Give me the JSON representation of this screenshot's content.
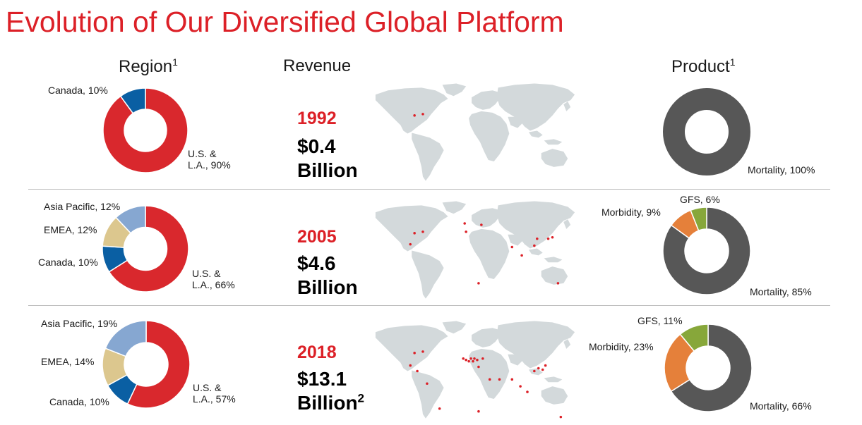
{
  "title": "Evolution of Our Diversified Global Platform",
  "columns": {
    "region": "Region",
    "region_sup": "1",
    "revenue": "Revenue",
    "product": "Product",
    "product_sup": "1"
  },
  "colors": {
    "title": "#dc2027",
    "us_la": "#d9282d",
    "canada": "#0a5fa3",
    "emea": "#dcc78e",
    "asia_pacific": "#86a7d1",
    "mortality": "#575757",
    "morbidity": "#e5803a",
    "gfs": "#87a73a",
    "map_land": "#d3d9db",
    "map_dot": "#dc2027"
  },
  "rows": [
    {
      "year": "1992",
      "revenue_line1": "$0.4",
      "revenue_line2": "Billion",
      "revenue_sup": "",
      "region_labels": {
        "canada": "Canada, 10%",
        "us_la_1": "U.S. &",
        "us_la_2": "L.A., 90%"
      },
      "product_labels": {
        "mortality": "Mortality, 100%"
      }
    },
    {
      "year": "2005",
      "revenue_line1": "$4.6",
      "revenue_line2": "Billion",
      "revenue_sup": "",
      "region_labels": {
        "asia_pacific": "Asia Pacific, 12%",
        "emea": "EMEA, 12%",
        "canada": "Canada, 10%",
        "us_la_1": "U.S. &",
        "us_la_2": "L.A., 66%"
      },
      "product_labels": {
        "gfs": "GFS, 6%",
        "morbidity": "Morbidity, 9%",
        "mortality": "Mortality, 85%"
      }
    },
    {
      "year": "2018",
      "revenue_line1": "$13.1",
      "revenue_line2": "Billion",
      "revenue_sup": "2",
      "region_labels": {
        "asia_pacific": "Asia Pacific, 19%",
        "emea": "EMEA, 14%",
        "canada": "Canada, 10%",
        "us_la_1": "U.S. &",
        "us_la_2": "L.A., 57%"
      },
      "product_labels": {
        "gfs": "GFS, 11%",
        "morbidity": "Morbidity, 23%",
        "mortality": "Mortality, 66%"
      }
    }
  ],
  "chart_data": [
    {
      "type": "pie",
      "title": "Region",
      "year": "1992",
      "series": [
        {
          "name": "U.S. & L.A.",
          "value": 90
        },
        {
          "name": "Canada",
          "value": 10
        }
      ]
    },
    {
      "type": "pie",
      "title": "Product",
      "year": "1992",
      "series": [
        {
          "name": "Mortality",
          "value": 100
        }
      ]
    },
    {
      "type": "pie",
      "title": "Region",
      "year": "2005",
      "series": [
        {
          "name": "U.S. & L.A.",
          "value": 66
        },
        {
          "name": "Canada",
          "value": 10
        },
        {
          "name": "EMEA",
          "value": 12
        },
        {
          "name": "Asia Pacific",
          "value": 12
        }
      ]
    },
    {
      "type": "pie",
      "title": "Product",
      "year": "2005",
      "series": [
        {
          "name": "Mortality",
          "value": 85
        },
        {
          "name": "Morbidity",
          "value": 9
        },
        {
          "name": "GFS",
          "value": 6
        }
      ]
    },
    {
      "type": "pie",
      "title": "Region",
      "year": "2018",
      "series": [
        {
          "name": "U.S. & L.A.",
          "value": 57
        },
        {
          "name": "Canada",
          "value": 10
        },
        {
          "name": "EMEA",
          "value": 14
        },
        {
          "name": "Asia Pacific",
          "value": 19
        }
      ]
    },
    {
      "type": "pie",
      "title": "Product",
      "year": "2018",
      "series": [
        {
          "name": "Mortality",
          "value": 66
        },
        {
          "name": "Morbidity",
          "value": 23
        },
        {
          "name": "GFS",
          "value": 11
        }
      ]
    }
  ]
}
